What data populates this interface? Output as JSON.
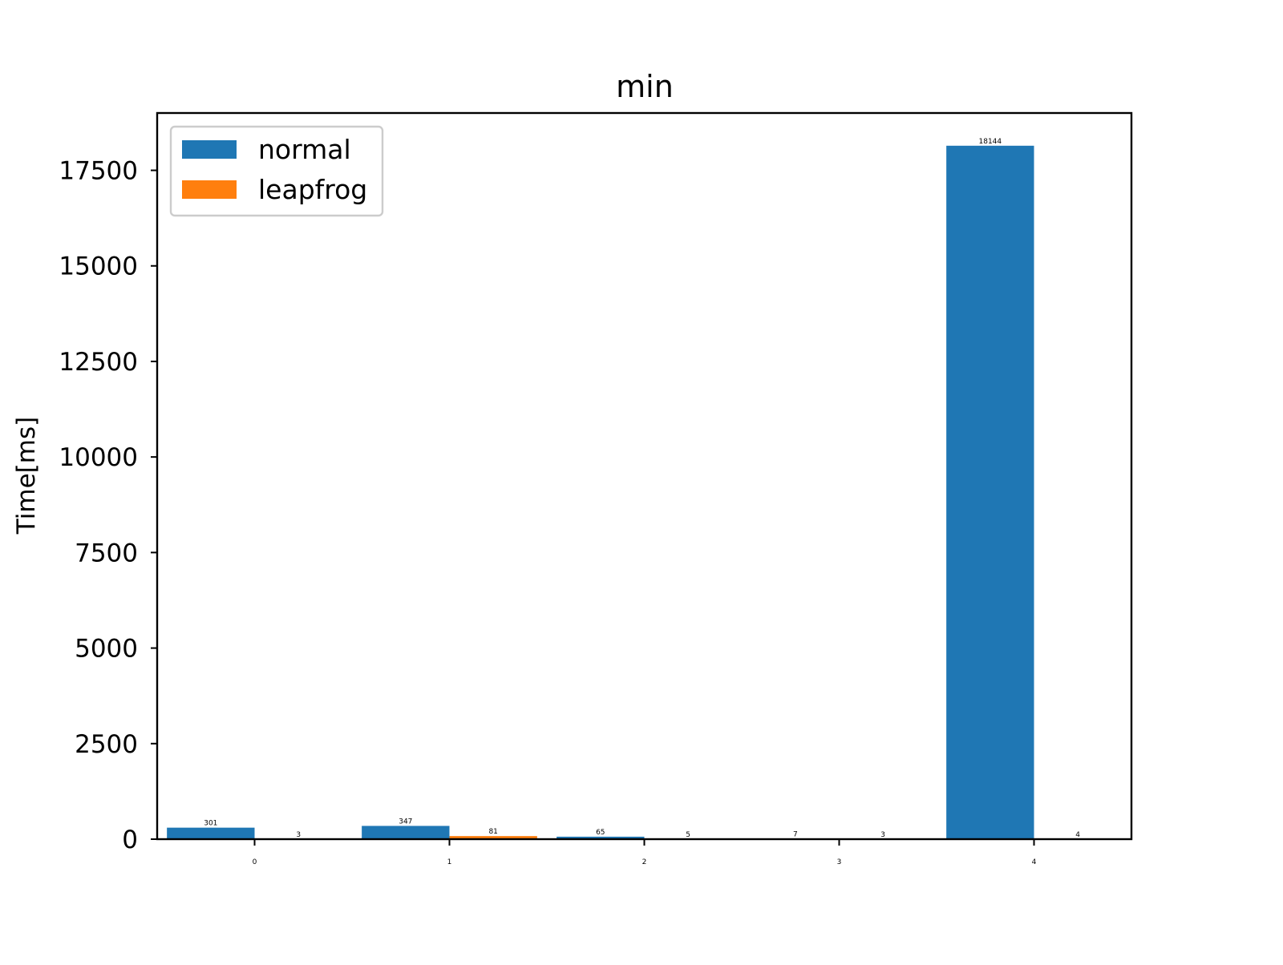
{
  "chart_data": {
    "type": "bar",
    "title": "min",
    "xlabel": "",
    "ylabel": "Time[ms]",
    "categories": [
      "0",
      "1",
      "2",
      "3",
      "4"
    ],
    "series": [
      {
        "name": "normal",
        "color": "#1f77b4",
        "values": [
          301,
          347,
          65,
          7,
          18144
        ],
        "labels": [
          "301",
          "347",
          "65",
          "7",
          "18144"
        ]
      },
      {
        "name": "leapfrog",
        "color": "#ff7f0e",
        "values": [
          3,
          81,
          5,
          3,
          4
        ],
        "labels": [
          "3",
          "81",
          "5",
          "3",
          "4"
        ]
      }
    ],
    "ylim": [
      0,
      19000
    ],
    "yticks": [
      0,
      2500,
      5000,
      7500,
      10000,
      12500,
      15000,
      17500
    ],
    "ytick_labels": [
      "0",
      "2500",
      "5000",
      "7500",
      "10000",
      "12500",
      "15000",
      "17500"
    ],
    "grid": false,
    "legend_position": "top-left"
  }
}
